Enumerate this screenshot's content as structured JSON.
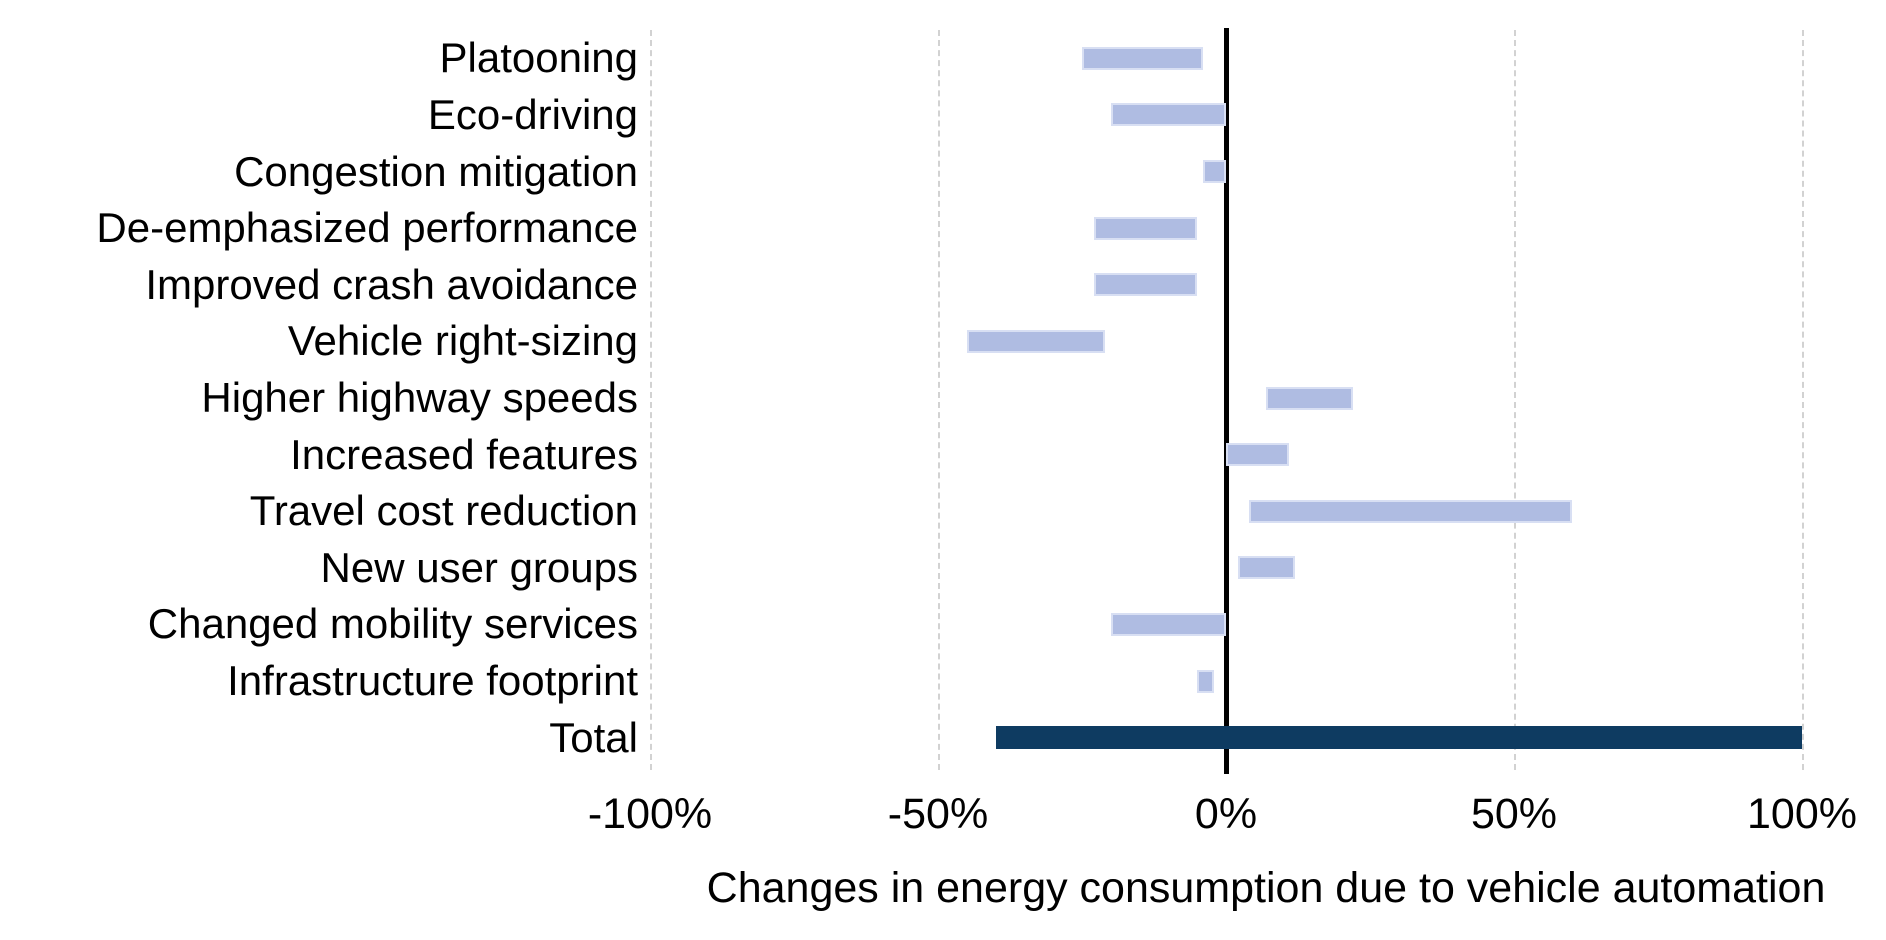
{
  "chart_data": {
    "type": "bar",
    "subtype": "horizontal-range-bars",
    "title": "",
    "xlabel": "Changes in energy consumption due to vehicle automation",
    "ylabel": "",
    "xlim": [
      -100,
      100
    ],
    "grid": "vertical-dashed",
    "legend": "none",
    "x_ticks": [
      {
        "value": -100,
        "label": "-100%"
      },
      {
        "value": -50,
        "label": "-50%"
      },
      {
        "value": 0,
        "label": "0%"
      },
      {
        "value": 50,
        "label": "50%"
      },
      {
        "value": 100,
        "label": "100%"
      }
    ],
    "bars": [
      {
        "label": "Platooning",
        "low": -25,
        "high": -4,
        "style": "normal"
      },
      {
        "label": "Eco-driving",
        "low": -20,
        "high": 0,
        "style": "normal"
      },
      {
        "label": "Congestion mitigation",
        "low": -4,
        "high": 0,
        "style": "normal"
      },
      {
        "label": "De-emphasized performance",
        "low": -23,
        "high": -5,
        "style": "normal"
      },
      {
        "label": "Improved crash avoidance",
        "low": -23,
        "high": -5,
        "style": "normal"
      },
      {
        "label": "Vehicle right-sizing",
        "low": -45,
        "high": -21,
        "style": "normal"
      },
      {
        "label": "Higher highway speeds",
        "low": 7,
        "high": 22,
        "style": "normal"
      },
      {
        "label": "Increased features",
        "low": 0,
        "high": 11,
        "style": "normal"
      },
      {
        "label": "Travel cost reduction",
        "low": 4,
        "high": 60,
        "style": "normal"
      },
      {
        "label": "New user groups",
        "low": 2,
        "high": 12,
        "style": "normal"
      },
      {
        "label": "Changed mobility services",
        "low": -20,
        "high": 0,
        "style": "normal"
      },
      {
        "label": "Infrastructure footprint",
        "low": -5,
        "high": -2,
        "style": "normal"
      },
      {
        "label": "Total",
        "low": -40,
        "high": 100,
        "style": "total"
      }
    ],
    "colors": {
      "bar_fill": "#AFBCE2",
      "bar_border": "#d8dff3",
      "total_bar_fill": "#0E3B61",
      "zero_axis": "#000000",
      "gridline": "#d2d2d2",
      "text": "#000000",
      "background": "#ffffff"
    }
  }
}
